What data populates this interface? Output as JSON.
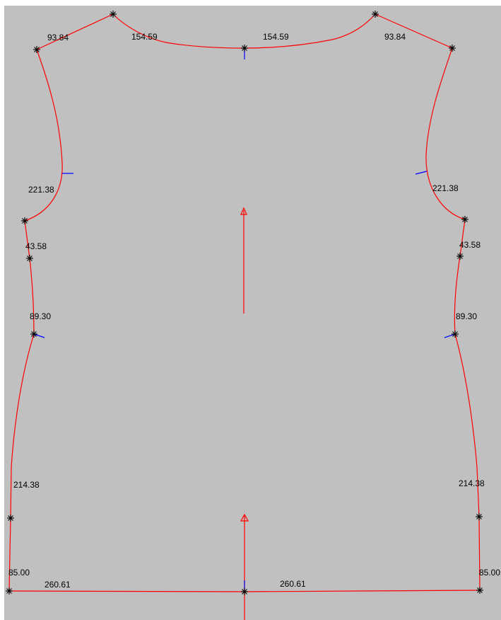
{
  "colors": {
    "background": "#c0c0c0",
    "outline": "#ff0000",
    "notch": "#0000ff",
    "point": "#000000",
    "grainline": "#ff0000"
  },
  "labels": {
    "shoulder_left": "93.84",
    "shoulder_right": "93.84",
    "neck_left": "154.59",
    "neck_right": "154.59",
    "armhole_left": "221.38",
    "armhole_right": "221.38",
    "side_upper_left": "43.58",
    "side_upper_right": "43.58",
    "side_mid_left": "89.30",
    "side_mid_right": "89.30",
    "side_lower_left": "214.38",
    "side_lower_right": "214.38",
    "side_bottom_left": "85.00",
    "side_bottom_right": "85.00",
    "hem_left": "260.61",
    "hem_right": "260.61"
  },
  "markers": {
    "point_icon": "asterisk-icon",
    "grain_arrow_icon": "arrowhead-icon"
  }
}
